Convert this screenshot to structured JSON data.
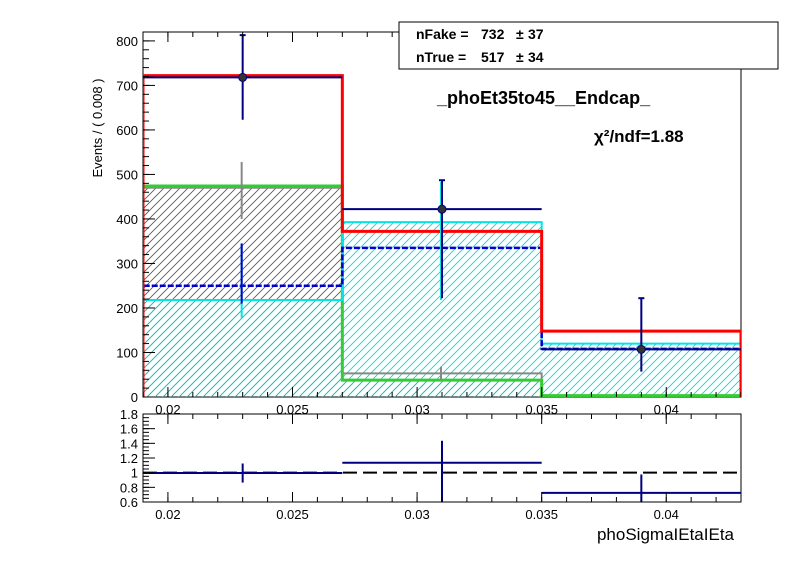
{
  "chart_data": [
    {
      "type": "histogram",
      "title": "_phoEt35to45__Endcap_",
      "ylabel": "Events / ( 0.008 )",
      "xlim": [
        0.019,
        0.043
      ],
      "ylim": [
        0,
        820
      ],
      "xticks": [
        "0.02",
        "0.025",
        "0.03",
        "0.035",
        "0.04"
      ],
      "xtick_values": [
        0.02,
        0.025,
        0.03,
        0.035,
        0.04
      ],
      "yticks": [
        "0",
        "100",
        "200",
        "300",
        "400",
        "500",
        "600",
        "700",
        "800"
      ],
      "ytick_values": [
        0,
        100,
        200,
        300,
        400,
        500,
        600,
        700,
        800
      ],
      "bin_edges": [
        0.019,
        0.027,
        0.035,
        0.043
      ],
      "legend": {
        "fake_label": "nFake =",
        "fake_value": "732",
        "fake_err": "37",
        "true_label": "nTrue =",
        "true_value": "517",
        "true_err": "34",
        "pm": "±"
      },
      "chi2": "χ²/ndf=1.88",
      "series": [
        {
          "role": "data-points",
          "color": "#000080",
          "x": [
            0.023,
            0.031,
            0.039
          ],
          "values": [
            718,
            422,
            107
          ],
          "yerr_low": [
            95,
            200,
            50
          ],
          "yerr_high": [
            95,
            65,
            115
          ]
        },
        {
          "role": "total-fit",
          "color": "#ff0000",
          "values": [
            722,
            372,
            148
          ]
        },
        {
          "role": "fake-template-hatched",
          "color": "#00e5e5",
          "values": [
            218,
            393,
            120
          ]
        },
        {
          "role": "true-template-hatched",
          "color": "#33cc33",
          "values": [
            474,
            38,
            3
          ]
        },
        {
          "role": "grey-template",
          "color": "#888888",
          "values": [
            470,
            53,
            3
          ]
        },
        {
          "role": "blue-dashed",
          "color": "#0000cc",
          "values": [
            250,
            335,
            108
          ]
        },
        {
          "role": "grey-errors",
          "color": "#888888",
          "x": [
            0.023,
            0.031
          ],
          "values": [
            470,
            53
          ],
          "yerr_low": [
            70,
            15
          ],
          "yerr_high": [
            58,
            15
          ]
        },
        {
          "role": "cyan-errors",
          "color": "#00e5e5",
          "x": [
            0.023,
            0.031
          ],
          "values": [
            218,
            393
          ],
          "yerr_low": [
            40,
            175
          ],
          "yerr_high": [
            125,
            90
          ]
        },
        {
          "role": "blue-errors",
          "color": "#0000cc",
          "x": [
            0.023
          ],
          "values": [
            250
          ],
          "yerr_low": [
            40
          ],
          "yerr_high": [
            95
          ]
        }
      ]
    },
    {
      "type": "ratio",
      "xlabel": "phoSigmaIEtaIEta",
      "xlim": [
        0.019,
        0.043
      ],
      "ylim": [
        0.6,
        1.8
      ],
      "xticks": [
        "0.02",
        "0.025",
        "0.03",
        "0.035",
        "0.04"
      ],
      "xtick_values": [
        0.02,
        0.025,
        0.03,
        0.035,
        0.04
      ],
      "yticks": [
        "0.6",
        "0.8",
        "1",
        "1.2",
        "1.4",
        "1.6",
        "1.8"
      ],
      "ytick_values": [
        0.6,
        0.8,
        1.0,
        1.2,
        1.4,
        1.6,
        1.8
      ],
      "reference": 1.0,
      "series": [
        {
          "role": "ratio",
          "color": "#000080",
          "x": [
            0.023,
            0.031,
            0.039
          ],
          "bin_edges": [
            0.019,
            0.027,
            0.035,
            0.043
          ],
          "values": [
            0.995,
            1.135,
            0.725
          ],
          "yerr_low": [
            0.13,
            0.55,
            0.36
          ],
          "yerr_high": [
            0.13,
            0.3,
            0.25
          ]
        }
      ]
    }
  ]
}
